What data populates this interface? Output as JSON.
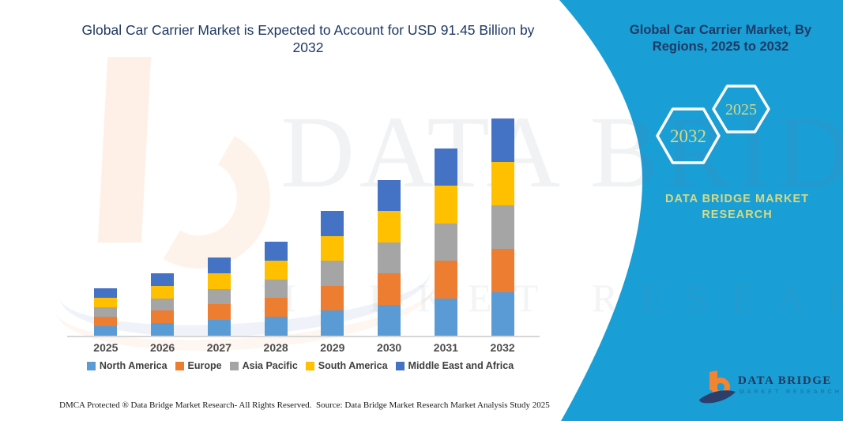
{
  "chart": {
    "title_line1": "Global Car Carrier Market is Expected to Account for USD 91.45 Billion by",
    "title_line2": "2032"
  },
  "chart_data": {
    "type": "bar",
    "stacked": true,
    "title": "Global Car Carrier Market is Expected to Account for USD 91.45 Billion by 2032",
    "unit": "USD Billion",
    "categories": [
      "2025",
      "2026",
      "2027",
      "2028",
      "2029",
      "2030",
      "2031",
      "2032"
    ],
    "series": [
      {
        "name": "North America",
        "color": "#5B9BD5",
        "values": [
          4.0,
          5.26,
          6.58,
          7.92,
          10.51,
          13.11,
          15.78,
          18.29
        ]
      },
      {
        "name": "Europe",
        "color": "#ED7D31",
        "values": [
          4.0,
          5.26,
          6.58,
          7.92,
          10.51,
          13.11,
          15.78,
          18.29
        ]
      },
      {
        "name": "Asia Pacific",
        "color": "#A5A5A5",
        "values": [
          4.0,
          5.26,
          6.58,
          7.92,
          10.51,
          13.11,
          15.78,
          18.29
        ]
      },
      {
        "name": "South America",
        "color": "#FFC000",
        "values": [
          4.0,
          5.26,
          6.58,
          7.92,
          10.51,
          13.11,
          15.78,
          18.29
        ]
      },
      {
        "name": "Middle East and Africa",
        "color": "#4472C4",
        "values": [
          4.0,
          5.26,
          6.58,
          7.92,
          10.51,
          13.11,
          15.78,
          18.29
        ]
      }
    ],
    "totals": [
      20.0,
      26.3,
      32.9,
      39.6,
      52.55,
      65.55,
      78.9,
      91.45
    ],
    "ylim": [
      0,
      95
    ],
    "grid": false,
    "legend_position": "bottom",
    "xlabel": "",
    "ylabel": ""
  },
  "side_panel": {
    "heading": "Global Car Carrier Market, By Regions, 2025 to 2032",
    "hexagon_back_label": "2032",
    "hexagon_front_label": "2025",
    "brand_name": "DATA BRIDGE MARKET RESEARCH",
    "colors": {
      "background": "#1A9ED6",
      "accent_text": "#D6DA82",
      "heading_text": "#1E3A64"
    }
  },
  "watermark": {
    "line1": "DATA BRIDGE",
    "line2": "MARKET RESEARCH"
  },
  "logo": {
    "name": "DATA BRIDGE",
    "subtitle": "MARKET RESEARCH"
  },
  "footer": {
    "dmca": "DMCA Protected ® Data Bridge Market Research-  All Rights Reserved.",
    "source": "Source: Data Bridge Market Research  Market Analysis Study 2025"
  }
}
